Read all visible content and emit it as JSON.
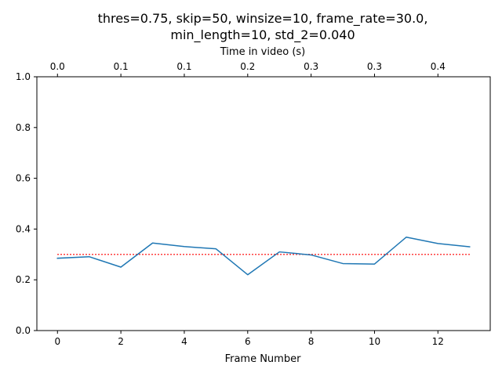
{
  "chart_data": {
    "type": "line",
    "title_lines": [
      "thres=0.75, skip=50, winsize=10, frame_rate=30.0,",
      "min_length=10, std_2=0.040"
    ],
    "xlabel": "Frame Number",
    "ylabel": "",
    "top_xlabel": "Time in video (s)",
    "xlim": [
      -0.65,
      13.65
    ],
    "ylim": [
      0.0,
      1.0
    ],
    "x_ticks": [
      0,
      2,
      4,
      6,
      8,
      10,
      12
    ],
    "x_tick_labels": [
      "0",
      "2",
      "4",
      "6",
      "8",
      "10",
      "12"
    ],
    "y_ticks": [
      0.0,
      0.2,
      0.4,
      0.6,
      0.8,
      1.0
    ],
    "y_tick_labels": [
      "0.0",
      "0.2",
      "0.4",
      "0.6",
      "0.8",
      "1.0"
    ],
    "top_ticks": [
      0,
      2,
      4,
      6,
      8,
      10,
      12
    ],
    "top_tick_labels": [
      "0.0",
      "0.1",
      "0.1",
      "0.2",
      "0.3",
      "0.3",
      "0.4"
    ],
    "grid": false,
    "series": [
      {
        "color": "#1f77b4",
        "x": [
          0,
          1,
          2,
          3,
          4,
          5,
          6,
          7,
          8,
          9,
          10,
          11,
          12,
          13
        ],
        "y": [
          0.285,
          0.291,
          0.25,
          0.345,
          0.331,
          0.322,
          0.22,
          0.31,
          0.298,
          0.264,
          0.262,
          0.368,
          0.343,
          0.33
        ]
      }
    ],
    "threshold": {
      "y": 0.3,
      "x_range": [
        0,
        13
      ],
      "color": "#ff0000",
      "style": "dotted"
    }
  }
}
